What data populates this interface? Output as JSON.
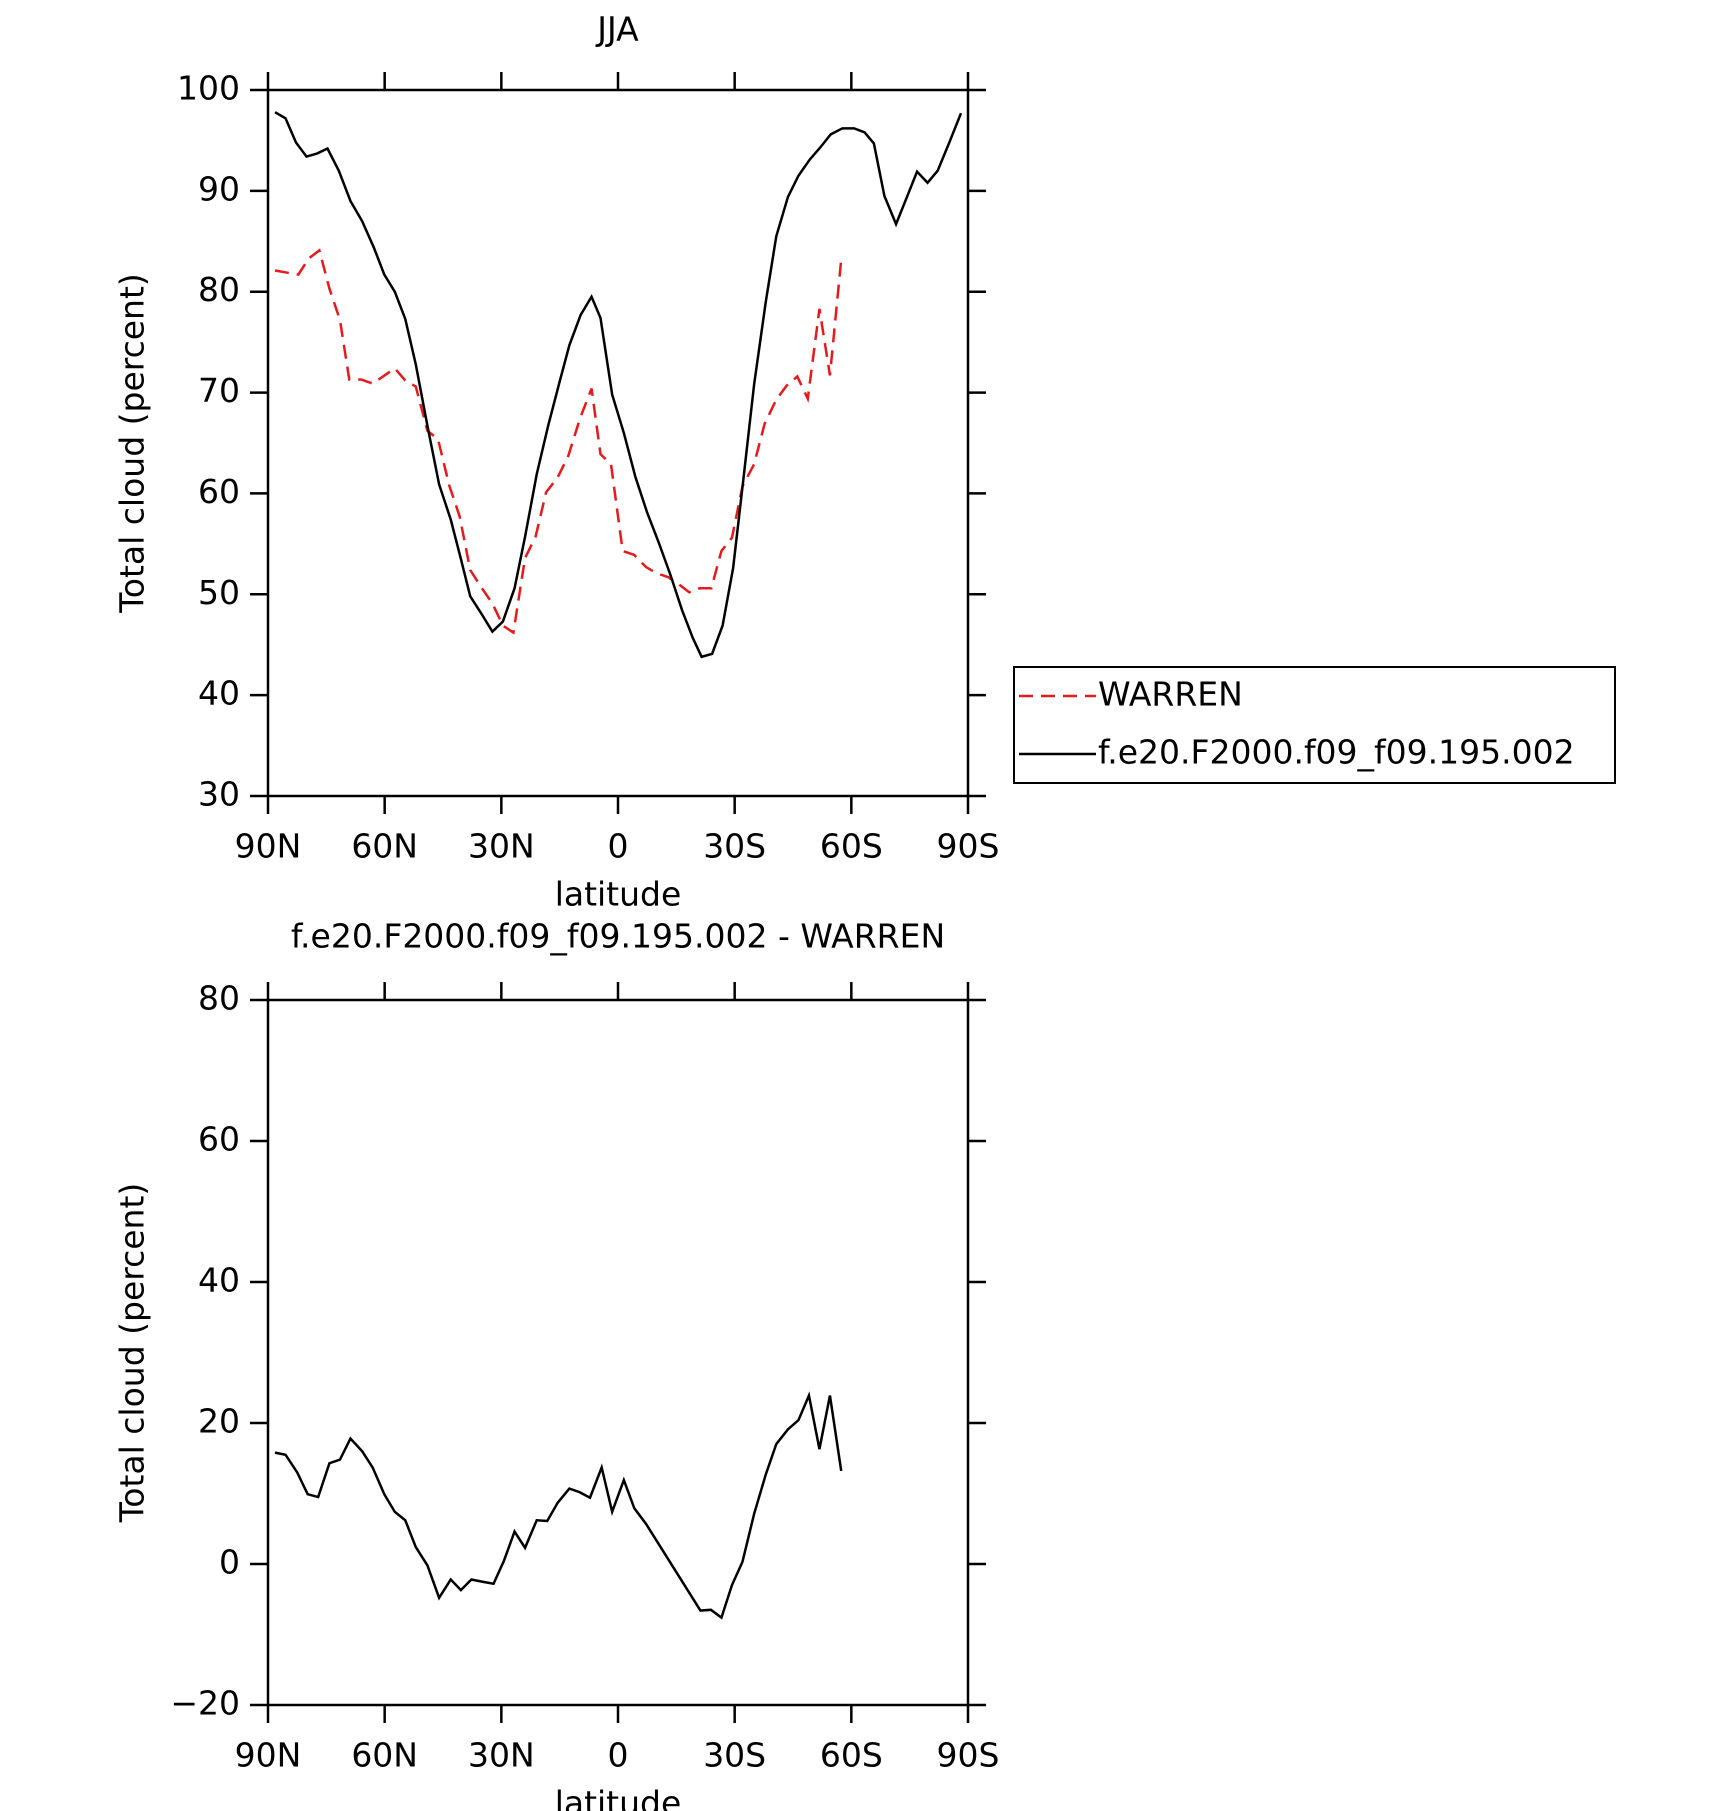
{
  "chart_data": [
    {
      "type": "line",
      "title": "JJA",
      "x_label": "latitude",
      "y_label": "Total cloud (percent)",
      "xlim": [
        90,
        -90
      ],
      "ylim": [
        30,
        100
      ],
      "xticks": [
        {
          "value": 90,
          "label": "90N"
        },
        {
          "value": 60,
          "label": "60N"
        },
        {
          "value": 30,
          "label": "30N"
        },
        0,
        {
          "value": -30,
          "label": "30S"
        },
        {
          "value": -60,
          "label": "60S"
        },
        {
          "value": -90,
          "label": "90S"
        }
      ],
      "yticks": [
        30,
        40,
        50,
        60,
        70,
        80,
        90,
        100
      ],
      "legend": "right",
      "series": [
        {
          "name": "WARREN",
          "color": "#e41a1c",
          "style": "dashed",
          "x": [
            88.2,
            85.2,
            82.2,
            79.5,
            76.8,
            74.2,
            71.5,
            69.1,
            66.1,
            63.1,
            60.4,
            57.4,
            54.7,
            52.0,
            49.0,
            46.3,
            43.4,
            40.7,
            38.0,
            35.0,
            32.3,
            29.6,
            26.9,
            23.9,
            21.2,
            18.5,
            15.5,
            12.8,
            9.8,
            6.8,
            4.5,
            1.8,
            -1.2,
            -4.2,
            -7.2,
            -9.9,
            -12.9,
            -15.6,
            -18.3,
            -21.0,
            -24.0,
            -26.6,
            -29.3,
            -32.0,
            -35.0,
            -37.7,
            -40.7,
            -43.4,
            -46.1,
            -48.8,
            -51.8,
            -54.5,
            -57.4
          ],
          "values": [
            82.1,
            81.9,
            81.7,
            83.3,
            84.1,
            80.3,
            77.2,
            71.3,
            71.3,
            70.9,
            71.6,
            72.4,
            71.2,
            70.6,
            66.2,
            65.4,
            60.8,
            57.7,
            52.4,
            50.6,
            49.1,
            46.9,
            46.2,
            53.6,
            55.7,
            60.1,
            61.6,
            63.7,
            67.4,
            70.4,
            63.9,
            62.9,
            54.3,
            53.9,
            52.7,
            52.1,
            51.7,
            51.0,
            50.2,
            50.6,
            50.6,
            54.3,
            55.6,
            60.7,
            62.9,
            66.9,
            69.3,
            70.7,
            71.6,
            69.4,
            78.3,
            71.7,
            83.2
          ]
        },
        {
          "name": "f.e20.F2000.f09_f09.195.002",
          "color": "#000000",
          "style": "solid",
          "x": [
            88.2,
            85.5,
            82.8,
            80.1,
            77.4,
            74.7,
            71.8,
            68.8,
            65.8,
            62.8,
            60.1,
            57.4,
            54.7,
            52.0,
            49.0,
            46.0,
            43.0,
            40.4,
            38.0,
            35.0,
            32.3,
            29.6,
            26.6,
            23.9,
            20.9,
            17.9,
            15.2,
            12.5,
            9.6,
            6.8,
            4.5,
            1.5,
            -1.5,
            -4.5,
            -7.5,
            -10.5,
            -13.5,
            -16.5,
            -19.2,
            -21.5,
            -24.2,
            -26.9,
            -29.6,
            -32.3,
            -35.0,
            -38.0,
            -40.7,
            -43.7,
            -46.4,
            -49.3,
            -52.0,
            -54.7,
            -57.7,
            -60.7,
            -63.4,
            -65.8,
            -68.5,
            -71.5,
            -74.2,
            -76.9,
            -79.6,
            -82.2,
            -85.2,
            -88.2
          ],
          "values": [
            97.8,
            97.2,
            94.8,
            93.4,
            93.7,
            94.2,
            92.0,
            89.0,
            87.0,
            84.4,
            81.7,
            80.0,
            77.3,
            72.8,
            66.7,
            60.9,
            57.4,
            53.5,
            49.8,
            48.0,
            46.3,
            47.3,
            50.6,
            55.7,
            61.9,
            66.8,
            70.8,
            74.7,
            77.7,
            79.5,
            77.4,
            69.8,
            66.0,
            61.6,
            58.1,
            55.1,
            51.9,
            48.4,
            45.7,
            43.8,
            44.1,
            46.9,
            52.6,
            61.6,
            70.8,
            79.0,
            85.5,
            89.4,
            91.5,
            93.1,
            94.3,
            95.6,
            96.2,
            96.2,
            95.8,
            94.7,
            89.5,
            86.7,
            89.3,
            91.9,
            90.8,
            92.0,
            94.8,
            97.7
          ]
        }
      ]
    },
    {
      "type": "line",
      "title": "f.e20.F2000.f09_f09.195.002 - WARREN",
      "x_label": "latitude",
      "y_label": "Total cloud (percent)",
      "xlim": [
        90,
        -90
      ],
      "ylim": [
        -20,
        80
      ],
      "xticks": [
        {
          "value": 90,
          "label": "90N"
        },
        {
          "value": 60,
          "label": "60N"
        },
        {
          "value": 30,
          "label": "30N"
        },
        0,
        {
          "value": -30,
          "label": "30S"
        },
        {
          "value": -60,
          "label": "60S"
        },
        {
          "value": -90,
          "label": "90S"
        }
      ],
      "yticks": [
        {
          "value": -20,
          "label": "−20"
        },
        0,
        20,
        40,
        60,
        80
      ],
      "color": "#000000",
      "x": [
        88.2,
        85.5,
        82.5,
        79.8,
        77.1,
        74.2,
        71.5,
        68.8,
        65.8,
        63.1,
        60.1,
        57.4,
        54.7,
        52.0,
        49.0,
        46.0,
        43.0,
        40.4,
        37.7,
        35.0,
        32.0,
        29.3,
        26.6,
        23.9,
        20.9,
        18.2,
        15.5,
        12.5,
        9.9,
        7.2,
        4.2,
        1.5,
        -1.5,
        -4.2,
        -7.2,
        -21.2,
        -23.9,
        -26.6,
        -29.3,
        -32.0,
        -35.0,
        -38.0,
        -40.7,
        -43.7,
        -46.4,
        -49.1,
        -51.8,
        -54.5,
        -57.4
      ],
      "values": [
        15.8,
        15.5,
        13.0,
        9.9,
        9.5,
        14.3,
        14.8,
        17.8,
        16.0,
        13.7,
        9.9,
        7.4,
        6.2,
        2.4,
        -0.2,
        -4.8,
        -2.2,
        -3.7,
        -2.2,
        -2.5,
        -2.8,
        0.5,
        4.6,
        2.3,
        6.2,
        6.1,
        8.7,
        10.7,
        10.2,
        9.4,
        13.7,
        7.4,
        11.9,
        7.9,
        5.7,
        -6.6,
        -6.5,
        -7.6,
        -3.0,
        0.3,
        7.1,
        12.7,
        17.0,
        19.1,
        20.4,
        23.9,
        16.3,
        23.9,
        13.2
      ]
    }
  ]
}
